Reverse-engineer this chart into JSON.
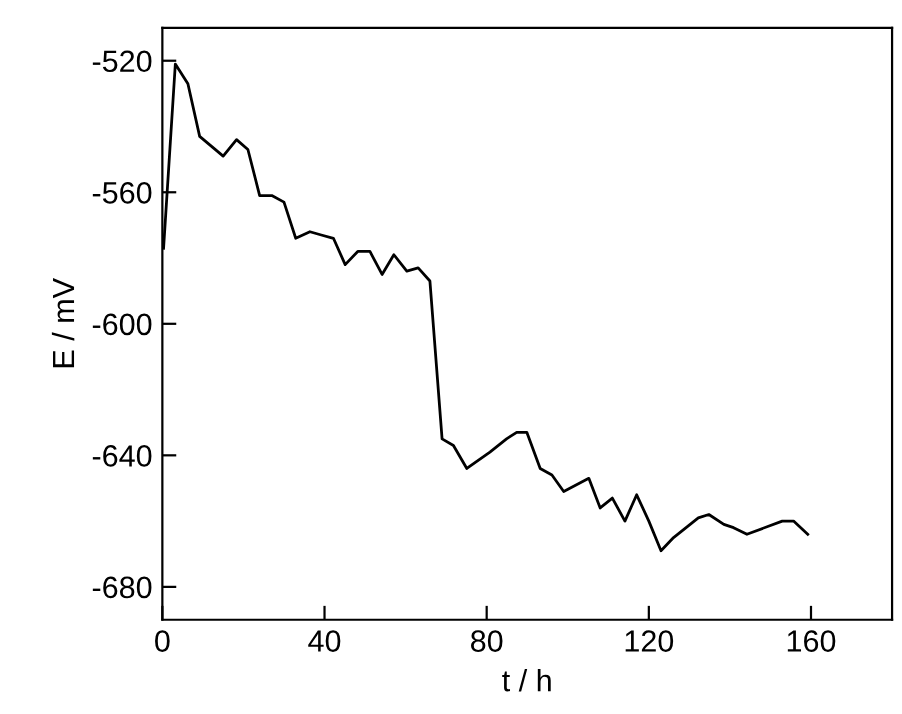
{
  "chart_data": {
    "type": "line",
    "xlabel": "t / h",
    "ylabel": "E / mV",
    "x": [
      0.3,
      3.2,
      6.3,
      9.2,
      15,
      18.3,
      21.1,
      24,
      27,
      30,
      32.9,
      36.4,
      39.2,
      42.2,
      45.1,
      48.2,
      51.2,
      54.2,
      57.1,
      60.3,
      63.1,
      66,
      69,
      71.8,
      75.1,
      80.8,
      84.9,
      87.4,
      89.9,
      93.2,
      96.1,
      99,
      105.2,
      108,
      111,
      114.1,
      117,
      120,
      123,
      126.1,
      132.2,
      134.8,
      138.5,
      140.9,
      144.2,
      152.9,
      155.7,
      159.2
    ],
    "series": [
      {
        "color": "#000000",
        "values": [
          -577,
          -521,
          -527,
          -543,
          -549,
          -544,
          -547,
          -561,
          -561,
          -563,
          -574,
          -572,
          -573,
          -574,
          -582,
          -578,
          -578,
          -585,
          -579,
          -584,
          -583,
          -587,
          -635,
          -637,
          -644,
          -639,
          -635,
          -633,
          -633,
          -644,
          -646,
          -651,
          -647,
          -656,
          -653,
          -660,
          -652,
          -660,
          -669,
          -665,
          -659,
          -658,
          -661,
          -662,
          -664,
          -660,
          -660,
          -664
        ]
      }
    ],
    "xlim": [
      0,
      180
    ],
    "xticks": [
      0,
      40,
      80,
      120,
      160
    ],
    "ylim": [
      -690,
      -510
    ],
    "yticks": [
      -520,
      -560,
      -600,
      -640,
      -680
    ],
    "grid": false,
    "legend": false,
    "marker": "none",
    "line_style": "solid"
  }
}
